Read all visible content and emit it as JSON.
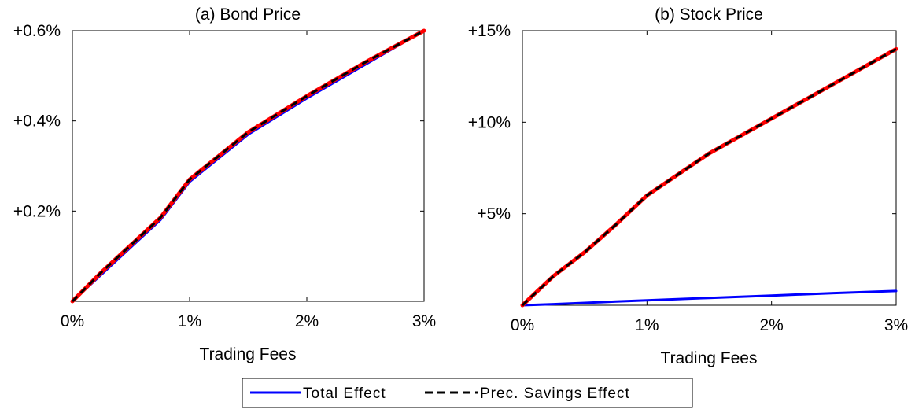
{
  "legend": {
    "items": [
      {
        "label": "Total Effect",
        "color": "#0000ff",
        "dash": "solid"
      },
      {
        "label": "Prec. Savings Effect",
        "color": "#000000",
        "dash": "dashed"
      }
    ]
  },
  "chart_data": [
    {
      "type": "line",
      "title": "(a) Bond Price",
      "xlabel": "Trading Fees",
      "ylabel": "",
      "xlim": [
        0,
        3
      ],
      "ylim": [
        0,
        0.6
      ],
      "xticks": [
        0,
        1,
        2,
        3
      ],
      "xticklabels": [
        "0%",
        "1%",
        "2%",
        "3%"
      ],
      "yticks": [
        0.2,
        0.4,
        0.6
      ],
      "yticklabels": [
        "+0.2%",
        "+0.4%",
        "+0.6%"
      ],
      "x": [
        0,
        0.25,
        0.5,
        0.75,
        1.0,
        1.5,
        2.0,
        2.5,
        3.0
      ],
      "series": [
        {
          "name": "Total Effect",
          "color": "#0000ff",
          "values": [
            0,
            0.06,
            0.12,
            0.18,
            0.265,
            0.37,
            0.45,
            0.525,
            0.6
          ]
        },
        {
          "name": "Prec. Savings Effect",
          "color": "#000000",
          "overlay": "#ff0000",
          "values": [
            0,
            0.065,
            0.125,
            0.185,
            0.27,
            0.375,
            0.455,
            0.53,
            0.6
          ]
        }
      ]
    },
    {
      "type": "line",
      "title": "(b) Stock Price",
      "xlabel": "Trading Fees",
      "ylabel": "",
      "xlim": [
        0,
        3
      ],
      "ylim": [
        0,
        15
      ],
      "xticks": [
        0,
        1,
        2,
        3
      ],
      "xticklabels": [
        "0%",
        "1%",
        "2%",
        "3%"
      ],
      "yticks": [
        5,
        10,
        15
      ],
      "yticklabels": [
        "+5%",
        "+10%",
        "+15%"
      ],
      "x": [
        0,
        0.25,
        0.5,
        0.75,
        1.0,
        1.5,
        2.0,
        2.5,
        3.0
      ],
      "series": [
        {
          "name": "Total Effect",
          "color": "#0000ff",
          "values": [
            0,
            0.06,
            0.13,
            0.2,
            0.27,
            0.4,
            0.53,
            0.66,
            0.78
          ]
        },
        {
          "name": "Prec. Savings Effect",
          "color": "#000000",
          "overlay": "#ff0000",
          "values": [
            0,
            1.6,
            2.9,
            4.4,
            6.0,
            8.3,
            10.2,
            12.1,
            14.0
          ]
        }
      ]
    }
  ]
}
